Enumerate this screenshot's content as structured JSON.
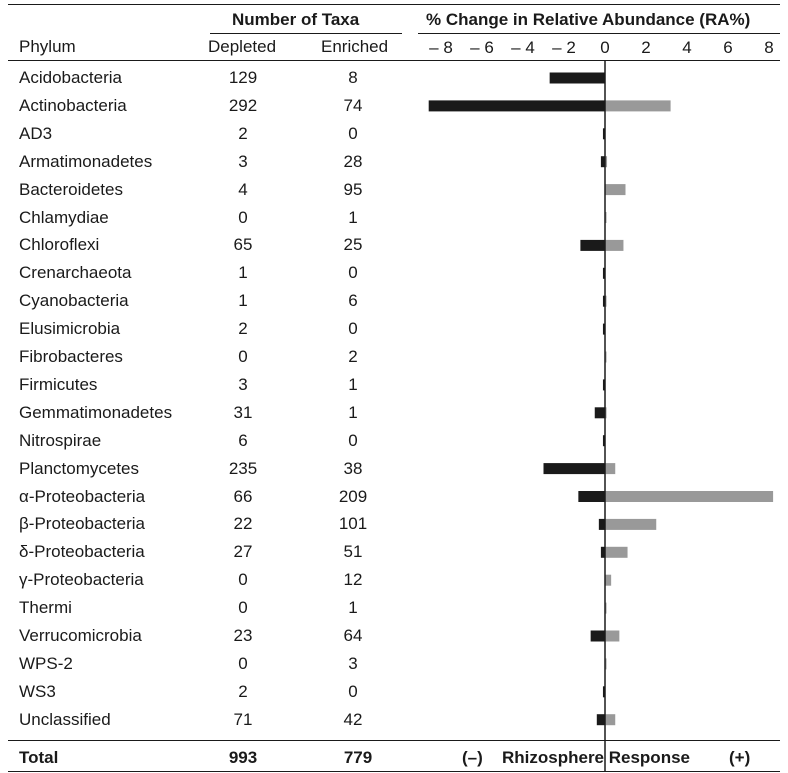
{
  "header": {
    "group_title": "Number of Taxa",
    "col_phylum": "Phylum",
    "col_depleted": "Depleted",
    "col_enriched": "Enriched"
  },
  "rows": [
    {
      "phylum": "Acidobacteria",
      "depleted": "129",
      "enriched": "8"
    },
    {
      "phylum": "Actinobacteria",
      "depleted": "292",
      "enriched": "74"
    },
    {
      "phylum": "AD3",
      "depleted": "2",
      "enriched": "0"
    },
    {
      "phylum": "Armatimonadetes",
      "depleted": "3",
      "enriched": "28"
    },
    {
      "phylum": "Bacteroidetes",
      "depleted": "4",
      "enriched": "95"
    },
    {
      "phylum": "Chlamydiae",
      "depleted": "0",
      "enriched": "1"
    },
    {
      "phylum": "Chloroflexi",
      "depleted": "65",
      "enriched": "25"
    },
    {
      "phylum": "Crenarchaeota",
      "depleted": "1",
      "enriched": "0"
    },
    {
      "phylum": "Cyanobacteria",
      "depleted": "1",
      "enriched": "6"
    },
    {
      "phylum": "Elusimicrobia",
      "depleted": "2",
      "enriched": "0"
    },
    {
      "phylum": "Fibrobacteres",
      "depleted": "0",
      "enriched": "2"
    },
    {
      "phylum": "Firmicutes",
      "depleted": "3",
      "enriched": "1"
    },
    {
      "phylum": "Gemmatimonadetes",
      "depleted": "31",
      "enriched": "1"
    },
    {
      "phylum": "Nitrospirae",
      "depleted": "6",
      "enriched": "0"
    },
    {
      "phylum": "Planctomycetes",
      "depleted": "235",
      "enriched": "38"
    },
    {
      "phylum": "α-Proteobacteria",
      "depleted": "66",
      "enriched": "209"
    },
    {
      "phylum": "β-Proteobacteria",
      "depleted": "22",
      "enriched": "101"
    },
    {
      "phylum": "δ-Proteobacteria",
      "depleted": "27",
      "enriched": "51"
    },
    {
      "phylum": "γ-Proteobacteria",
      "depleted": "0",
      "enriched": "12"
    },
    {
      "phylum": "Thermi",
      "depleted": "0",
      "enriched": "1"
    },
    {
      "phylum": "Verrucomicrobia",
      "depleted": "23",
      "enriched": "64"
    },
    {
      "phylum": "WPS-2",
      "depleted": "0",
      "enriched": "3"
    },
    {
      "phylum": "WS3",
      "depleted": "2",
      "enriched": "0"
    },
    {
      "phylum": "Unclassified",
      "depleted": "71",
      "enriched": "42"
    }
  ],
  "total": {
    "label": "Total",
    "depleted": "993",
    "enriched": "779",
    "minus_label": "(–)",
    "response_label": "Rhizosphere Response",
    "plus_label": "(+)"
  },
  "chart_data": {
    "type": "bar",
    "orientation": "horizontal",
    "title": "% Change in Relative Abundance (RA%)",
    "xlim": [
      -8.6,
      8.2
    ],
    "xticks": [
      -8,
      -6,
      -4,
      -2,
      0,
      2,
      4,
      6,
      8
    ],
    "xtick_labels": [
      "– 8",
      "– 6",
      "– 4",
      "– 2",
      "0",
      "2",
      "4",
      "6",
      "8"
    ],
    "categories": [
      "Acidobacteria",
      "Actinobacteria",
      "AD3",
      "Armatimonadetes",
      "Bacteroidetes",
      "Chlamydiae",
      "Chloroflexi",
      "Crenarchaeota",
      "Cyanobacteria",
      "Elusimicrobia",
      "Fibrobacteres",
      "Firmicutes",
      "Gemmatimonadetes",
      "Nitrospirae",
      "Planctomycetes",
      "α-Proteobacteria",
      "β-Proteobacteria",
      "δ-Proteobacteria",
      "γ-Proteobacteria",
      "Thermi",
      "Verrucomicrobia",
      "WPS-2",
      "WS3",
      "Unclassified"
    ],
    "series": [
      {
        "values": [
          -2.7,
          -8.6,
          -0.1,
          -0.2,
          0.0,
          0.0,
          -1.2,
          -0.1,
          -0.1,
          -0.1,
          0.0,
          -0.1,
          -0.5,
          -0.1,
          -3.0,
          -1.3,
          -0.3,
          -0.2,
          0.0,
          0.0,
          -0.7,
          0.0,
          -0.1,
          -0.4
        ],
        "color": "#1a1a1a"
      },
      {
        "values": [
          0.0,
          3.2,
          0.0,
          0.1,
          1.0,
          0.05,
          0.9,
          0.0,
          0.05,
          0.0,
          0.05,
          0.0,
          0.05,
          0.0,
          0.5,
          8.2,
          2.5,
          1.1,
          0.3,
          0.05,
          0.7,
          0.05,
          0.0,
          0.5
        ],
        "color": "#999999"
      }
    ]
  }
}
